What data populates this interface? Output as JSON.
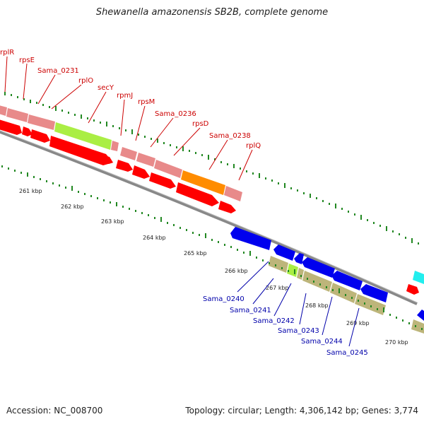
{
  "header": {
    "title": "Shewanella amazonensis SB2B, complete genome"
  },
  "footer": {
    "accession": "Accession: NC_008700",
    "topology": "Topology: circular; Length: 4,306,142 bp; Genes: 3,774"
  },
  "scale_labels": [
    "261 kbp",
    "262 kbp",
    "263 kbp",
    "264 kbp",
    "265 kbp",
    "266 kbp",
    "267 kbp",
    "268 kbp",
    "269 kbp",
    "270 kbp"
  ],
  "upper_gene_labels": [
    "rplR",
    "rpsE",
    "Sama_0231",
    "rplO",
    "secY",
    "rpmJ",
    "rpsM",
    "Sama_0236",
    "rpsD",
    "Sama_0238",
    "rplQ"
  ],
  "lower_gene_labels": [
    "Sama_0240",
    "Sama_0241",
    "Sama_0242",
    "Sama_0243",
    "Sama_0244",
    "Sama_0245"
  ],
  "colors": {
    "upper_label": "#cc0000",
    "lower_label": "#0000aa",
    "forward_cds": "#ff0000",
    "reverse_cds": "#0000ee",
    "gene_pink": "#e88a8a",
    "gene_green": "#aaee44",
    "gene_orange": "#ff8c00",
    "gene_khaki": "#bdb57a",
    "gene_cyan": "#22eeee",
    "backbone": "#888888",
    "tick": "#228822"
  }
}
